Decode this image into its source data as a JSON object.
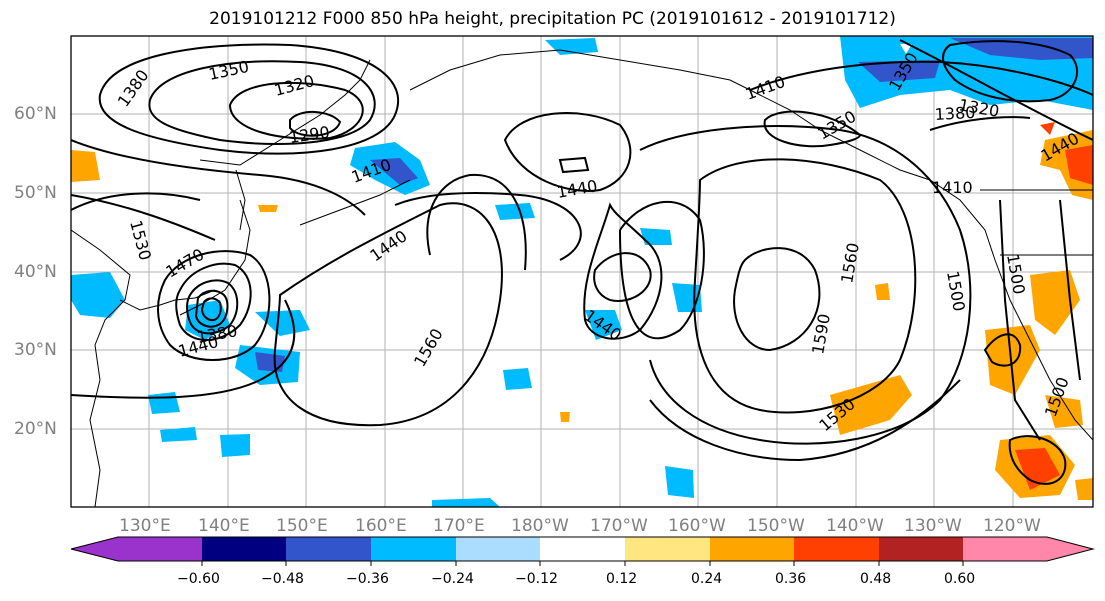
{
  "title": "2019101212 F000 850 hPa height, precipitation PC (2019101612 - 2019101712)",
  "lat_labels": [
    "60°N",
    "50°N",
    "40°N",
    "30°N",
    "20°N"
  ],
  "lon_labels": [
    "130°E",
    "140°E",
    "150°E",
    "160°E",
    "170°E",
    "180°W",
    "170°W",
    "160°W",
    "150°W",
    "140°W",
    "130°W",
    "120°W"
  ],
  "contour_labels": [
    "1380",
    "1350",
    "1320",
    "1290",
    "1410",
    "1440",
    "1530",
    "1470",
    "1440",
    "1380",
    "1560",
    "1440",
    "1440",
    "1590",
    "1560",
    "1530",
    "1410",
    "1350",
    "1380",
    "1320",
    "1440",
    "1410",
    "1500",
    "1500",
    "1500"
  ],
  "colorbar": {
    "colors": [
      "#9933cc",
      "#000080",
      "#3355cc",
      "#00bbff",
      "#aaddff",
      "#ffffff",
      "#ffe680",
      "#ffa500",
      "#ff4000",
      "#b22222",
      "#ff88aa"
    ],
    "tick_labels": [
      "−0.60",
      "−0.48",
      "−0.36",
      "−0.24",
      "−0.12",
      "0.12",
      "0.24",
      "0.36",
      "0.48",
      "0.60"
    ]
  }
}
